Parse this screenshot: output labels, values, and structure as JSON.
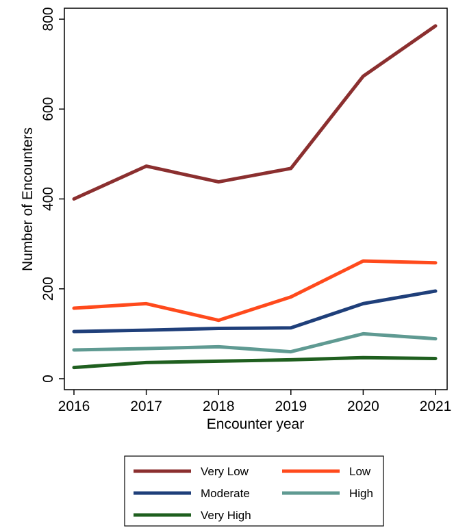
{
  "chart_data": {
    "type": "line",
    "title": "",
    "xlabel": "Encounter year",
    "ylabel": "Number of Encounters",
    "x": [
      2016,
      2017,
      2018,
      2019,
      2020,
      2021
    ],
    "x_tick_labels": [
      "2016",
      "2017",
      "2018",
      "2019",
      "2020",
      "2021"
    ],
    "y_ticks": [
      0,
      200,
      400,
      600,
      800
    ],
    "y_tick_labels": [
      "0",
      "200",
      "400",
      "600",
      "800"
    ],
    "ylim": [
      0,
      800
    ],
    "grid": false,
    "legend_position": "bottom",
    "series": [
      {
        "name": "Very Low",
        "color": "#8b2f2f",
        "values": [
          400,
          473,
          438,
          468,
          673,
          785
        ]
      },
      {
        "name": "Low",
        "color": "#ff4a1c",
        "values": [
          157,
          167,
          130,
          182,
          262,
          258
        ]
      },
      {
        "name": "Moderate",
        "color": "#1f3f7a",
        "values": [
          105,
          108,
          112,
          113,
          167,
          195
        ]
      },
      {
        "name": "High",
        "color": "#5f9a92",
        "values": [
          64,
          67,
          71,
          60,
          100,
          89
        ]
      },
      {
        "name": "Very High",
        "color": "#1f5f1f",
        "values": [
          25,
          36,
          39,
          42,
          47,
          45
        ]
      }
    ]
  }
}
